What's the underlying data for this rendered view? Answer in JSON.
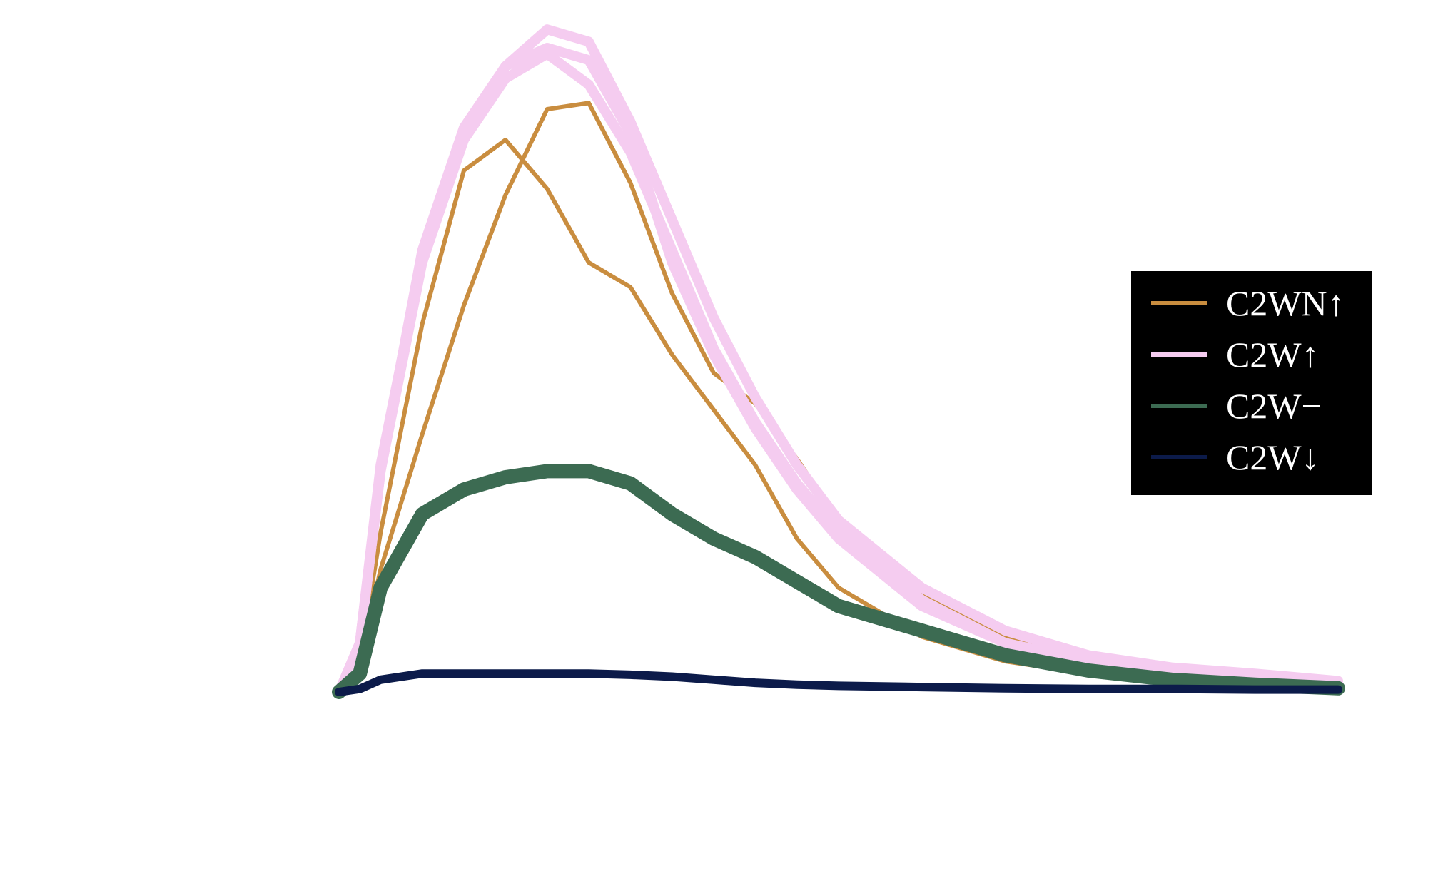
{
  "chart_data": {
    "type": "line",
    "title": "",
    "xlabel": "",
    "ylabel": "",
    "xlim": [
      0,
      12
    ],
    "ylim": [
      0,
      1.0
    ],
    "grid": false,
    "legend_position": "right",
    "legend_background": "#000000",
    "background": "#ffffff",
    "x": [
      0,
      0.25,
      0.5,
      1,
      1.5,
      2,
      2.5,
      3,
      3.5,
      4,
      4.5,
      5,
      5.5,
      6,
      7,
      8,
      9,
      10,
      11,
      12
    ],
    "series": [
      {
        "name": "C2WN↑",
        "color": "#c98d3f",
        "width": 6,
        "values": [
          0,
          0.05,
          0.26,
          0.6,
          0.85,
          0.9,
          0.82,
          0.7,
          0.66,
          0.55,
          0.46,
          0.37,
          0.25,
          0.17,
          0.09,
          0.05,
          0.03,
          0.015,
          0.007,
          0.003
        ]
      },
      {
        "name": "C2WN↑",
        "color": "#c98d3f",
        "width": 6,
        "values": [
          0,
          0.05,
          0.2,
          0.42,
          0.63,
          0.81,
          0.95,
          0.96,
          0.83,
          0.65,
          0.52,
          0.47,
          0.38,
          0.28,
          0.16,
          0.09,
          0.05,
          0.03,
          0.013,
          0.005
        ]
      },
      {
        "name": "C2W↑",
        "color": "#f5ccf0",
        "width": 14,
        "values": [
          0,
          0.08,
          0.36,
          0.7,
          0.9,
          1.0,
          1.04,
          0.99,
          0.88,
          0.72,
          0.56,
          0.44,
          0.34,
          0.26,
          0.15,
          0.08,
          0.05,
          0.035,
          0.025,
          0.015
        ]
      },
      {
        "name": "C2W↑",
        "color": "#f5ccf0",
        "width": 14,
        "values": [
          0,
          0.08,
          0.36,
          0.72,
          0.92,
          1.02,
          1.08,
          1.06,
          0.93,
          0.77,
          0.61,
          0.48,
          0.37,
          0.28,
          0.17,
          0.1,
          0.06,
          0.04,
          0.03,
          0.018
        ]
      },
      {
        "name": "C2W↑",
        "color": "#f5ccf0",
        "width": 14,
        "values": [
          0,
          0.08,
          0.37,
          0.71,
          0.9,
          1.02,
          1.05,
          1.03,
          0.91,
          0.7,
          0.55,
          0.43,
          0.33,
          0.25,
          0.14,
          0.08,
          0.05,
          0.03,
          0.02,
          0.012
        ]
      },
      {
        "name": "C2W−",
        "color": "#3c6b52",
        "width": 20,
        "values": [
          0,
          0.03,
          0.17,
          0.29,
          0.33,
          0.35,
          0.36,
          0.36,
          0.34,
          0.29,
          0.25,
          0.22,
          0.18,
          0.14,
          0.1,
          0.06,
          0.035,
          0.02,
          0.012,
          0.006
        ]
      },
      {
        "name": "C2W↓",
        "color": "#0c1b4a",
        "width": 12,
        "values": [
          0,
          0.005,
          0.02,
          0.03,
          0.03,
          0.03,
          0.03,
          0.03,
          0.028,
          0.025,
          0.02,
          0.015,
          0.012,
          0.01,
          0.008,
          0.006,
          0.005,
          0.005,
          0.004,
          0.004
        ]
      }
    ],
    "legend": [
      {
        "label": "C2WN↑",
        "color": "#c98d3f"
      },
      {
        "label": "C2W↑",
        "color": "#f5ccf0"
      },
      {
        "label": "C2W−",
        "color": "#3c6b52"
      },
      {
        "label": "C2W↓",
        "color": "#0c1b4a"
      }
    ]
  }
}
